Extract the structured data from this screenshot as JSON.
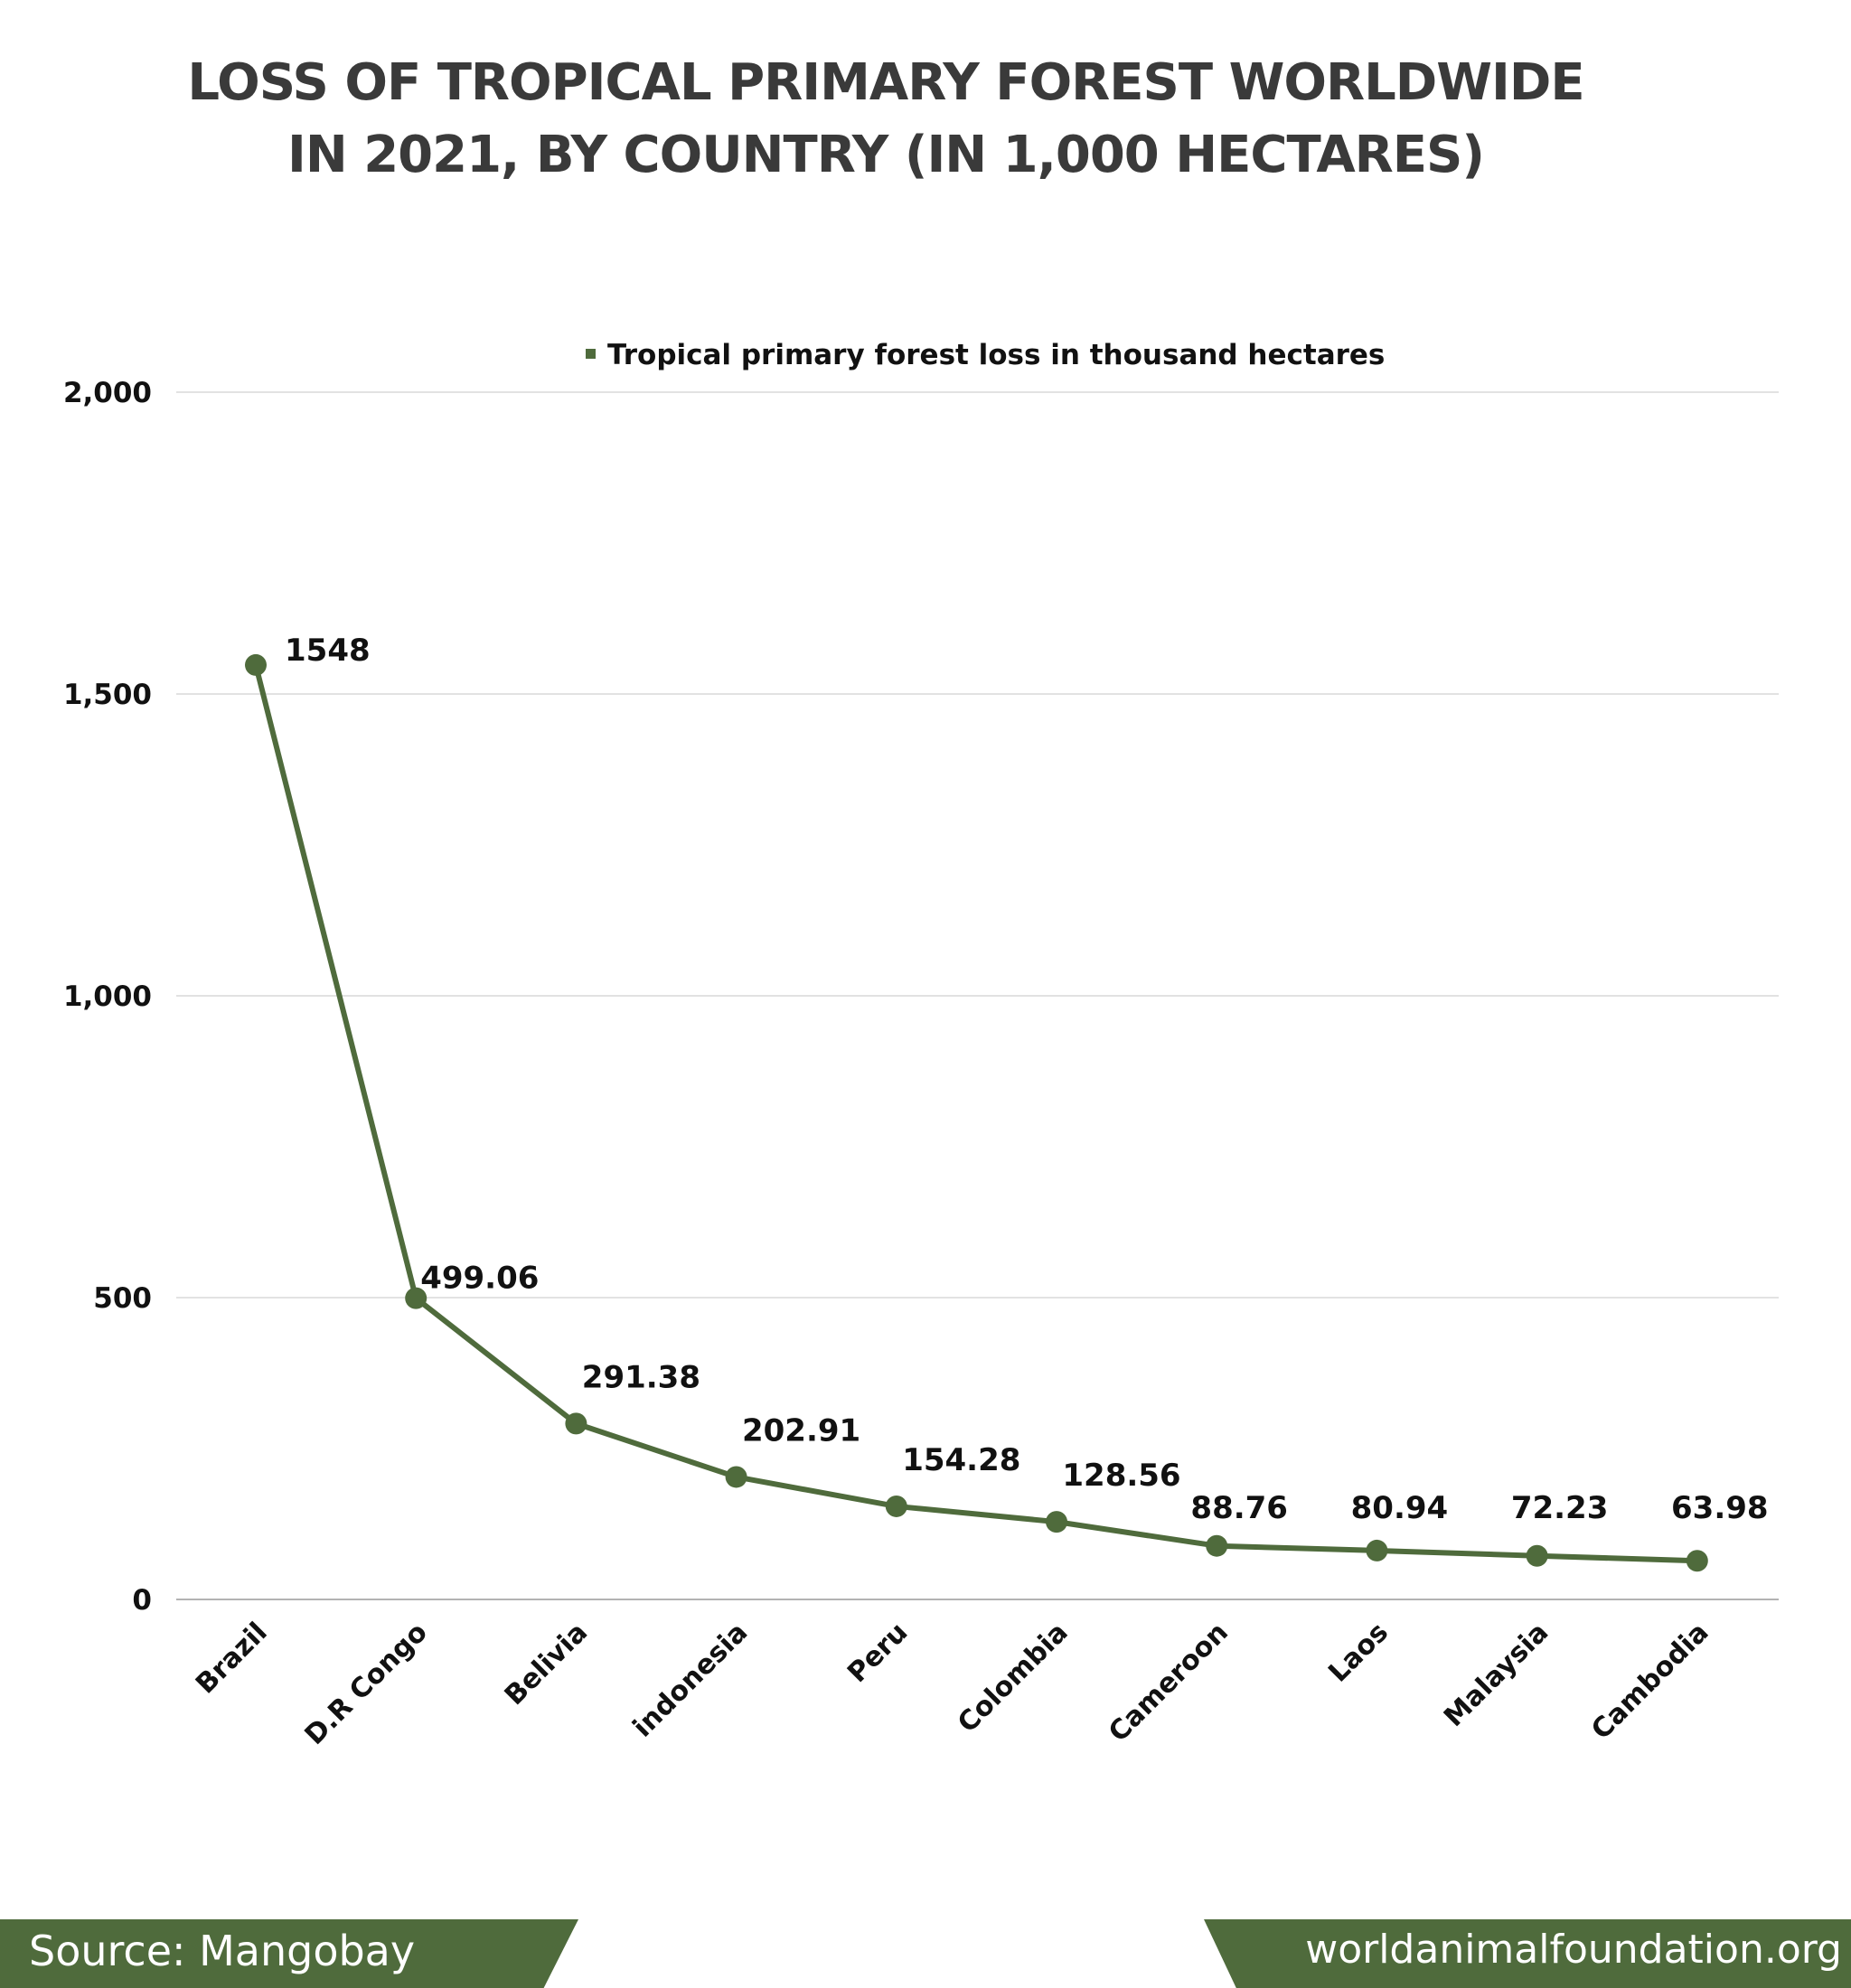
{
  "title_lines": [
    "LOSS OF TROPICAL PRIMARY FOREST WORLDWIDE",
    "IN 2021, BY COUNTRY (IN 1,000 HECTARES)"
  ],
  "footer": {
    "source": "Source: Mangobay",
    "site": "worldanimalfoundation.org"
  },
  "colors": {
    "series": "#4f6b3c",
    "grid": "#d9d9d9",
    "footer_bg": "#4f6b3c"
  },
  "chart_data": {
    "type": "line",
    "title": "LOSS OF TROPICAL PRIMARY FOREST WORLDWIDE IN 2021, BY COUNTRY (IN 1,000 HECTARES)",
    "categories": [
      "Brazil",
      "D.R Congo",
      "Belivia",
      "indonesia",
      "Peru",
      "Colombia",
      "Cameroon",
      "Laos",
      "Malaysia",
      "Cambodia"
    ],
    "series": [
      {
        "name": "Tropical primary forest loss in thousand hectares",
        "values": [
          1548,
          499.06,
          291.38,
          202.91,
          154.28,
          128.56,
          88.76,
          80.94,
          72.23,
          63.98
        ],
        "data_labels": [
          "1548",
          "499.06",
          "291.38",
          "202.91",
          "154.28",
          "128.56",
          "88.76",
          "80.94",
          "72.23",
          "63.98"
        ]
      }
    ],
    "ylim": [
      0,
      2000
    ],
    "yticks": [
      0,
      500,
      1000,
      1500,
      2000
    ],
    "ytick_labels": [
      "0",
      "500",
      "1,000",
      "1,500",
      "2,000"
    ],
    "xlabel": "",
    "ylabel": "",
    "grid": true,
    "legend_position": "top"
  }
}
